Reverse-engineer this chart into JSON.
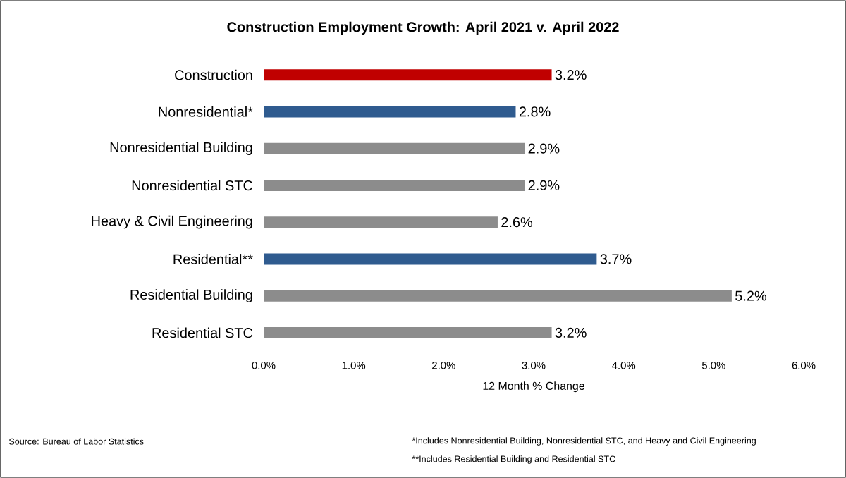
{
  "chart_data": {
    "type": "bar",
    "orientation": "horizontal",
    "title": "Construction Employment Growth: April 2021 v. April 2022",
    "categories": [
      "Construction",
      "Nonresidential*",
      "Nonresidential Building",
      "Nonresidential STC",
      "Heavy & Civil Engineering",
      "Residential**",
      "Residential Building",
      "Residential STC"
    ],
    "values": [
      3.2,
      2.8,
      2.9,
      2.9,
      2.6,
      3.7,
      5.2,
      3.2
    ],
    "colors": [
      "#c00000",
      "#2f5b8f",
      "#8c8c8c",
      "#8c8c8c",
      "#8c8c8c",
      "#2f5b8f",
      "#8c8c8c",
      "#8c8c8c"
    ],
    "value_labels": [
      "3.2%",
      "2.8%",
      "2.9%",
      "2.9%",
      "2.6%",
      "3.7%",
      "5.2%",
      "3.2%"
    ],
    "xlim": [
      0,
      6
    ],
    "xticks": [
      {
        "value": 0,
        "label": "0.0%"
      },
      {
        "value": 1,
        "label": "1.0%"
      },
      {
        "value": 2,
        "label": "2.0%"
      },
      {
        "value": 3,
        "label": "3.0%"
      },
      {
        "value": 4,
        "label": "4.0%"
      },
      {
        "value": 5,
        "label": "5.0%"
      },
      {
        "value": 6,
        "label": "6.0%"
      }
    ],
    "xlabel": "12 Month % Change",
    "annotations": [
      "Source:  Bureau of Labor Statistics",
      "*Includes Nonresidential Building, Nonresidential STC, and Heavy and Civil Engineering",
      "**Includes Residential Building and Residential STC"
    ]
  }
}
